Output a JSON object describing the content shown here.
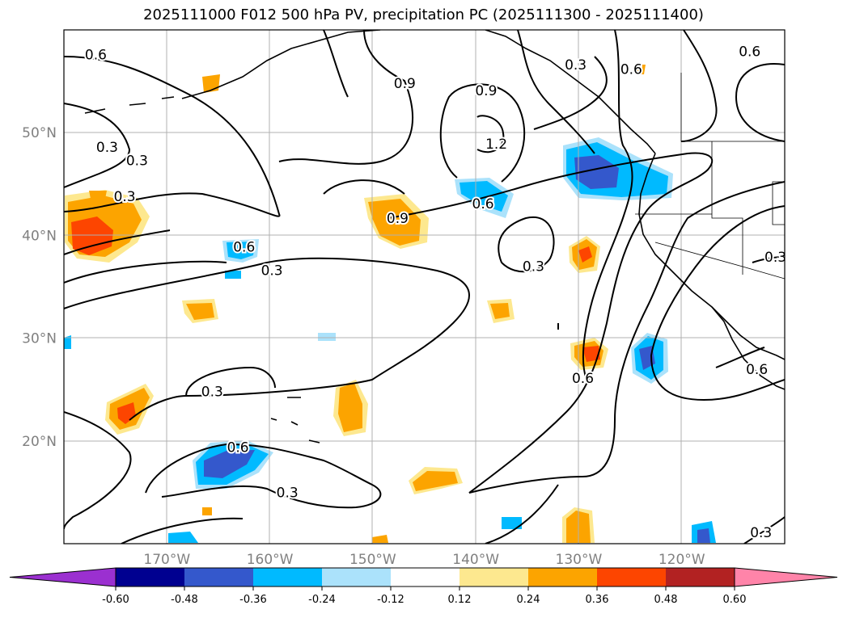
{
  "title": "2025111000 F012 500 hPa PV, precipitation PC (2025111300 - 2025111400)",
  "map": {
    "lon_range": [
      -180,
      -110
    ],
    "lat_range": [
      10,
      60
    ],
    "lon_ticks": [
      {
        "lon": -170,
        "label": "170°W"
      },
      {
        "lon": -160,
        "label": "160°W"
      },
      {
        "lon": -150,
        "label": "150°W"
      },
      {
        "lon": -140,
        "label": "140°W"
      },
      {
        "lon": -130,
        "label": "130°W"
      },
      {
        "lon": -120,
        "label": "120°W"
      }
    ],
    "lat_ticks": [
      {
        "lat": 50,
        "label": "50°N"
      },
      {
        "lat": 40,
        "label": "40°N"
      },
      {
        "lat": 30,
        "label": "30°N"
      },
      {
        "lat": 20,
        "label": "20°N"
      }
    ]
  },
  "contour_labels": [
    {
      "text": "0.9",
      "lon": -146.9,
      "lat": 54.8
    },
    {
      "text": "0.9",
      "lon": -139,
      "lat": 54.1
    },
    {
      "text": "0.6",
      "lon": -176.9,
      "lat": 57.6
    },
    {
      "text": "0.6",
      "lon": -139.3,
      "lat": 43.1
    },
    {
      "text": "0.3",
      "lon": -174.1,
      "lat": 43.8
    },
    {
      "text": "0.3",
      "lon": -175.8,
      "lat": 48.6
    },
    {
      "text": "0.9",
      "lon": -147.6,
      "lat": 41.7
    },
    {
      "text": "1.2",
      "lon": -138,
      "lat": 48.9
    },
    {
      "text": "0.3",
      "lon": -172.9,
      "lat": 47.3
    },
    {
      "text": "0.6",
      "lon": -162.5,
      "lat": 38.9
    },
    {
      "text": "0.3",
      "lon": -159.8,
      "lat": 36.6
    },
    {
      "text": "0.3",
      "lon": -134.4,
      "lat": 37
    },
    {
      "text": "0.3",
      "lon": -165.6,
      "lat": 24.8
    },
    {
      "text": "0.6",
      "lon": -163.1,
      "lat": 19.4
    },
    {
      "text": "0.3",
      "lon": -158.3,
      "lat": 15
    },
    {
      "text": "0.6",
      "lon": -129.6,
      "lat": 26.1
    },
    {
      "text": "0.6",
      "lon": -112.7,
      "lat": 27
    },
    {
      "text": "0.3",
      "lon": -110.9,
      "lat": 37.9
    },
    {
      "text": "0.3",
      "lon": -130.3,
      "lat": 56.6
    },
    {
      "text": "0.6",
      "lon": -124.9,
      "lat": 56.2
    },
    {
      "text": "0.6",
      "lon": -113.4,
      "lat": 57.9
    },
    {
      "text": "0.3",
      "lon": -112.3,
      "lat": 11.1
    }
  ],
  "colorbar": {
    "colors": [
      "#9b30d0",
      "#000090",
      "#3458cc",
      "#00baff",
      "#abe2fb",
      "#ffffff",
      "#fde88f",
      "#fca400",
      "#fd4500",
      "#b22222",
      "#ff84a9"
    ],
    "labels": [
      "-0.60",
      "-0.48",
      "-0.36",
      "-0.24",
      "-0.12",
      "0.12",
      "0.24",
      "0.36",
      "0.48",
      "0.60"
    ]
  }
}
